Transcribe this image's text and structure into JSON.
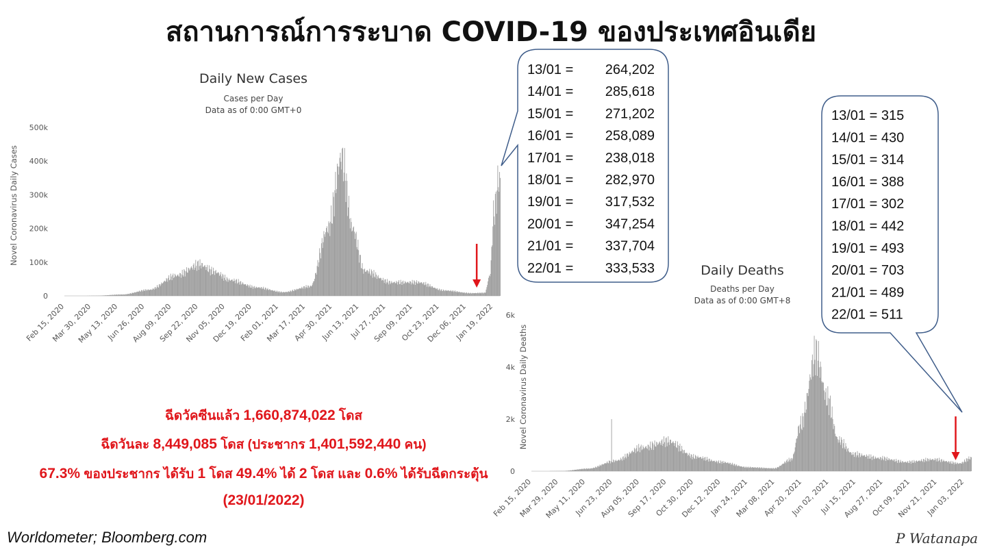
{
  "title": "สถานการณ์การระบาด COVID-19 ของประเทศอินเดีย",
  "cases_chart": {
    "title": "Daily New Cases",
    "subtitle1": "Cases per Day",
    "subtitle2": "Data as of 0:00 GMT+0"
  },
  "deaths_chart": {
    "title": "Daily Deaths",
    "subtitle1": "Deaths per Day",
    "subtitle2": "Data as of 0:00 GMT+8"
  },
  "callout_cases": {
    "items": [
      {
        "date": "13/01 =",
        "value": "264,202"
      },
      {
        "date": "14/01 =",
        "value": "285,618"
      },
      {
        "date": "15/01 =",
        "value": "271,202"
      },
      {
        "date": "16/01 =",
        "value": "258,089"
      },
      {
        "date": "17/01 =",
        "value": "238,018"
      },
      {
        "date": "18/01 =",
        "value": "282,970"
      },
      {
        "date": "19/01 =",
        "value": "317,532"
      },
      {
        "date": "20/01 =",
        "value": "347,254"
      },
      {
        "date": "21/01 =",
        "value": "337,704"
      },
      {
        "date": "22/01 =",
        "value": "333,533"
      }
    ]
  },
  "callout_deaths": {
    "items": [
      "13/01 = 315",
      "14/01 = 430",
      "15/01 = 314",
      "16/01 = 388",
      "17/01 = 302",
      "18/01 = 442",
      "19/01 = 493",
      "20/01 = 703",
      "21/01 = 489",
      "22/01 = 511"
    ]
  },
  "vaccination": {
    "line1_pre": "ฉีดวัคซีนแล้ว ",
    "line1_num": "1,660,874,022",
    "line1_post": " โดส",
    "line2_pre": "ฉีดวันละ ",
    "line2_num": "8,449,085",
    "line2_mid": " โดส (ประชากร ",
    "line2_num2": "1,401,592,440",
    "line2_post": " คน)",
    "line3_a": "67.3%",
    "line3_b": " ของประชากร ได้รับ ",
    "line3_c": "1",
    "line3_d": " โดส ",
    "line3_e": "49.4%",
    "line3_f": " ได้ ",
    "line3_g": "2",
    "line3_h": " โดส และ ",
    "line3_i": "0.6%",
    "line3_j": " ได้รับฉีดกระตุ้น",
    "line4": "(23/01/2022)"
  },
  "source": "Worldometer;  Bloomberg.com",
  "signature": "P Watanapa",
  "colors": {
    "bars": "#9e9e9e",
    "arrow": "#e0161b",
    "text_red": "#e0161b",
    "callout_border": "#3f5d8a"
  },
  "chart_data": [
    {
      "type": "bar",
      "title": "Daily New Cases",
      "subtitle": "Cases per Day",
      "ylabel": "Novel Coronavirus Daily Cases",
      "ylim": [
        0,
        500000
      ],
      "yticks": [
        "0",
        "100k",
        "200k",
        "300k",
        "400k",
        "500k"
      ],
      "xticks": [
        "Feb 15, 2020",
        "Mar 30, 2020",
        "May 13, 2020",
        "Jun 26, 2020",
        "Aug 09, 2020",
        "Sep 22, 2020",
        "Nov 05, 2020",
        "Dec 19, 2020",
        "Feb 01, 2021",
        "Mar 17, 2021",
        "Apr 30, 2021",
        "Jun 13, 2021",
        "Jul 27, 2021",
        "Sep 09, 2021",
        "Oct 23, 2021",
        "Dec 06, 2021",
        "Jan 19, 2022"
      ],
      "x_start": "2020-02-15",
      "x_end": "2022-01-22",
      "key_points": [
        {
          "date": "2020-02-15",
          "value": 0
        },
        {
          "date": "2020-03-30",
          "value": 500
        },
        {
          "date": "2020-05-13",
          "value": 4000
        },
        {
          "date": "2020-06-26",
          "value": 18000
        },
        {
          "date": "2020-08-09",
          "value": 60000
        },
        {
          "date": "2020-09-17",
          "value": 93000
        },
        {
          "date": "2020-10-10",
          "value": 72000
        },
        {
          "date": "2020-11-05",
          "value": 47000
        },
        {
          "date": "2020-12-19",
          "value": 25000
        },
        {
          "date": "2021-02-01",
          "value": 11000
        },
        {
          "date": "2021-03-17",
          "value": 28000
        },
        {
          "date": "2021-04-15",
          "value": 200000
        },
        {
          "date": "2021-05-07",
          "value": 410000
        },
        {
          "date": "2021-05-25",
          "value": 200000
        },
        {
          "date": "2021-06-13",
          "value": 75000
        },
        {
          "date": "2021-07-27",
          "value": 40000
        },
        {
          "date": "2021-09-09",
          "value": 40000
        },
        {
          "date": "2021-10-23",
          "value": 16000
        },
        {
          "date": "2021-12-06",
          "value": 8000
        },
        {
          "date": "2021-12-28",
          "value": 9000
        },
        {
          "date": "2022-01-05",
          "value": 60000
        },
        {
          "date": "2022-01-12",
          "value": 250000
        },
        {
          "date": "2022-01-20",
          "value": 347000
        },
        {
          "date": "2022-01-22",
          "value": 333000
        }
      ],
      "arrow_date": "2021-12-15"
    },
    {
      "type": "bar",
      "title": "Daily Deaths",
      "subtitle": "Deaths per Day",
      "ylabel": "Novel Coronavirus Daily Deaths",
      "ylim": [
        0,
        6000
      ],
      "yticks": [
        "0",
        "2k",
        "4k",
        "6k"
      ],
      "xticks": [
        "Feb 15, 2020",
        "Mar 29, 2020",
        "May 11, 2020",
        "Jun 23, 2020",
        "Aug 05, 2020",
        "Sep 17, 2020",
        "Oct 30, 2020",
        "Dec 12, 2020",
        "Jan 24, 2021",
        "Mar 08, 2021",
        "Apr 20, 2021",
        "Jun 02, 2021",
        "Jul 15, 2021",
        "Aug 27, 2021",
        "Oct 09, 2021",
        "Nov 21, 2021",
        "Jan 03, 2022"
      ],
      "x_start": "2020-02-15",
      "x_end": "2022-01-22",
      "key_points": [
        {
          "date": "2020-02-15",
          "value": 0
        },
        {
          "date": "2020-03-29",
          "value": 10
        },
        {
          "date": "2020-05-11",
          "value": 100
        },
        {
          "date": "2020-06-23",
          "value": 400
        },
        {
          "date": "2020-08-05",
          "value": 900
        },
        {
          "date": "2020-09-17",
          "value": 1150
        },
        {
          "date": "2020-10-30",
          "value": 550
        },
        {
          "date": "2020-12-12",
          "value": 350
        },
        {
          "date": "2021-01-24",
          "value": 150
        },
        {
          "date": "2021-03-08",
          "value": 110
        },
        {
          "date": "2021-04-05",
          "value": 450
        },
        {
          "date": "2021-04-20",
          "value": 1800
        },
        {
          "date": "2021-05-15",
          "value": 4500
        },
        {
          "date": "2021-06-02",
          "value": 2800
        },
        {
          "date": "2021-06-20",
          "value": 1200
        },
        {
          "date": "2021-07-15",
          "value": 650
        },
        {
          "date": "2021-08-27",
          "value": 500
        },
        {
          "date": "2021-10-09",
          "value": 350
        },
        {
          "date": "2021-11-21",
          "value": 450
        },
        {
          "date": "2022-01-03",
          "value": 300
        },
        {
          "date": "2022-01-22",
          "value": 511
        }
      ],
      "spikes": [
        {
          "date": "2020-06-17",
          "value": 2000
        }
      ],
      "arrow_date": "2021-12-28"
    }
  ]
}
